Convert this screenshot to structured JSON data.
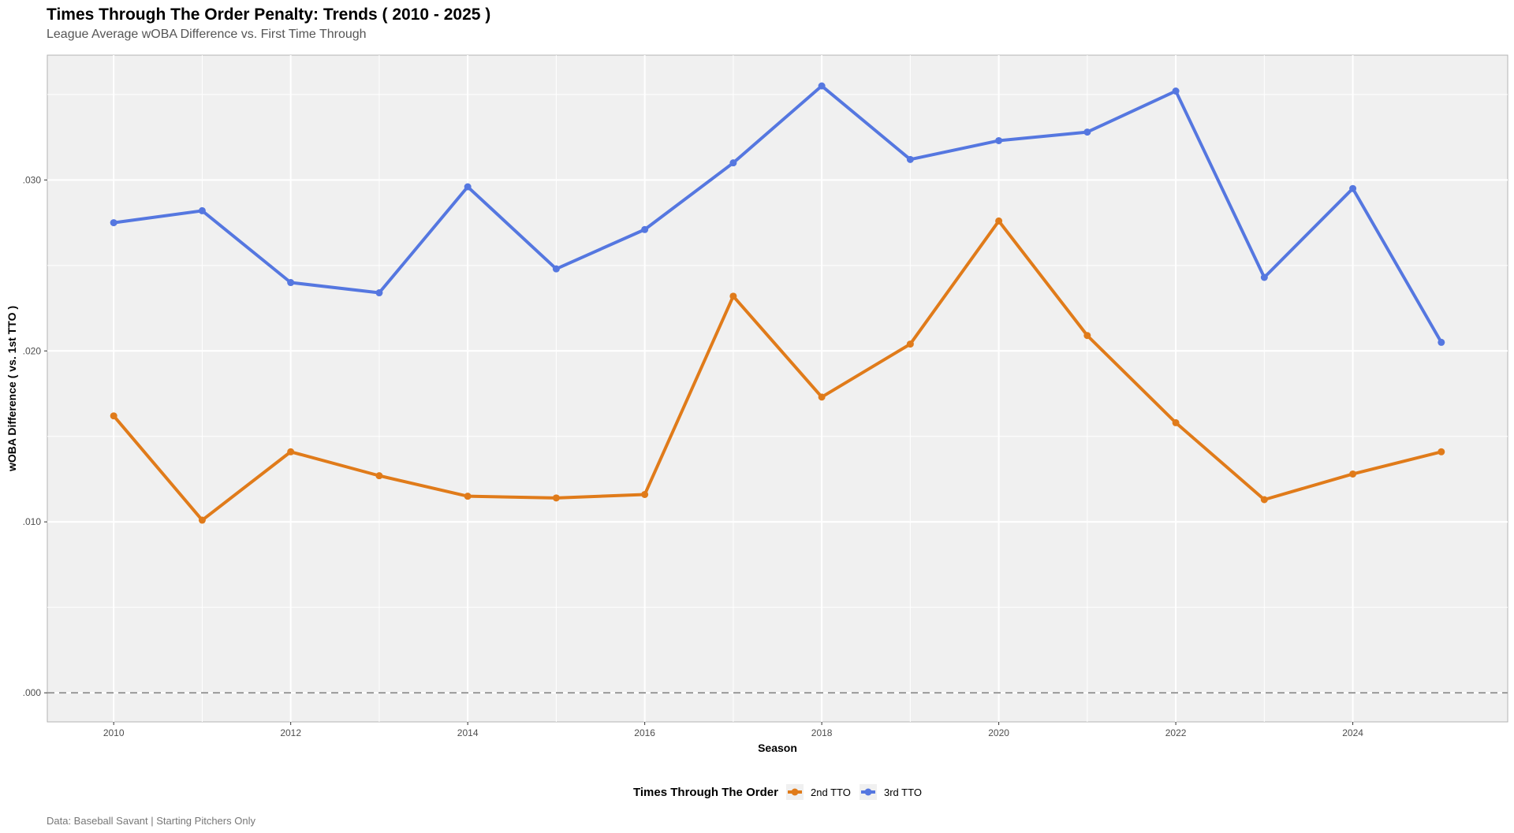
{
  "chart_data": {
    "type": "line",
    "title": "Times Through The Order Penalty: Trends ( 2010 - 2025 )",
    "subtitle": "League Average wOBA Difference vs. First Time Through",
    "xlabel": "Season",
    "ylabel": "wOBA Difference ( vs. 1st TTO )",
    "caption": "Data: Baseball Savant | Starting Pitchers Only",
    "x": [
      2010,
      2011,
      2012,
      2013,
      2014,
      2015,
      2016,
      2017,
      2018,
      2019,
      2020,
      2021,
      2022,
      2023,
      2024,
      2025
    ],
    "xlim": [
      2009.25,
      2025.75
    ],
    "ylim": [
      -0.0017,
      0.0373
    ],
    "x_ticks": [
      2010,
      2012,
      2014,
      2016,
      2018,
      2020,
      2022,
      2024
    ],
    "x_tick_labels": [
      "2010",
      "2012",
      "2014",
      "2016",
      "2018",
      "2020",
      "2022",
      "2024"
    ],
    "y_ticks": [
      0.0,
      0.01,
      0.02,
      0.03
    ],
    "y_tick_labels": [
      ".000",
      ".010",
      ".020",
      ".030"
    ],
    "reference_line": {
      "y": 0.0,
      "style": "dashed",
      "color": "#999999"
    },
    "grid": true,
    "panel_background": "#f0f0f0",
    "legend": {
      "title": "Times Through The Order",
      "position": "bottom"
    },
    "series": [
      {
        "name": "2nd TTO",
        "color": "#e07b1a",
        "values": [
          0.0162,
          0.0101,
          0.0141,
          0.0127,
          0.0115,
          0.0114,
          0.0116,
          0.0232,
          0.0173,
          0.0204,
          0.0276,
          0.0209,
          0.0158,
          0.0113,
          0.0128,
          0.0141
        ]
      },
      {
        "name": "3rd TTO",
        "color": "#5577e0",
        "values": [
          0.0275,
          0.0282,
          0.024,
          0.0234,
          0.0296,
          0.0248,
          0.0271,
          0.031,
          0.0355,
          0.0312,
          0.0323,
          0.0328,
          0.0352,
          0.0243,
          0.0295,
          0.0205
        ]
      }
    ]
  }
}
